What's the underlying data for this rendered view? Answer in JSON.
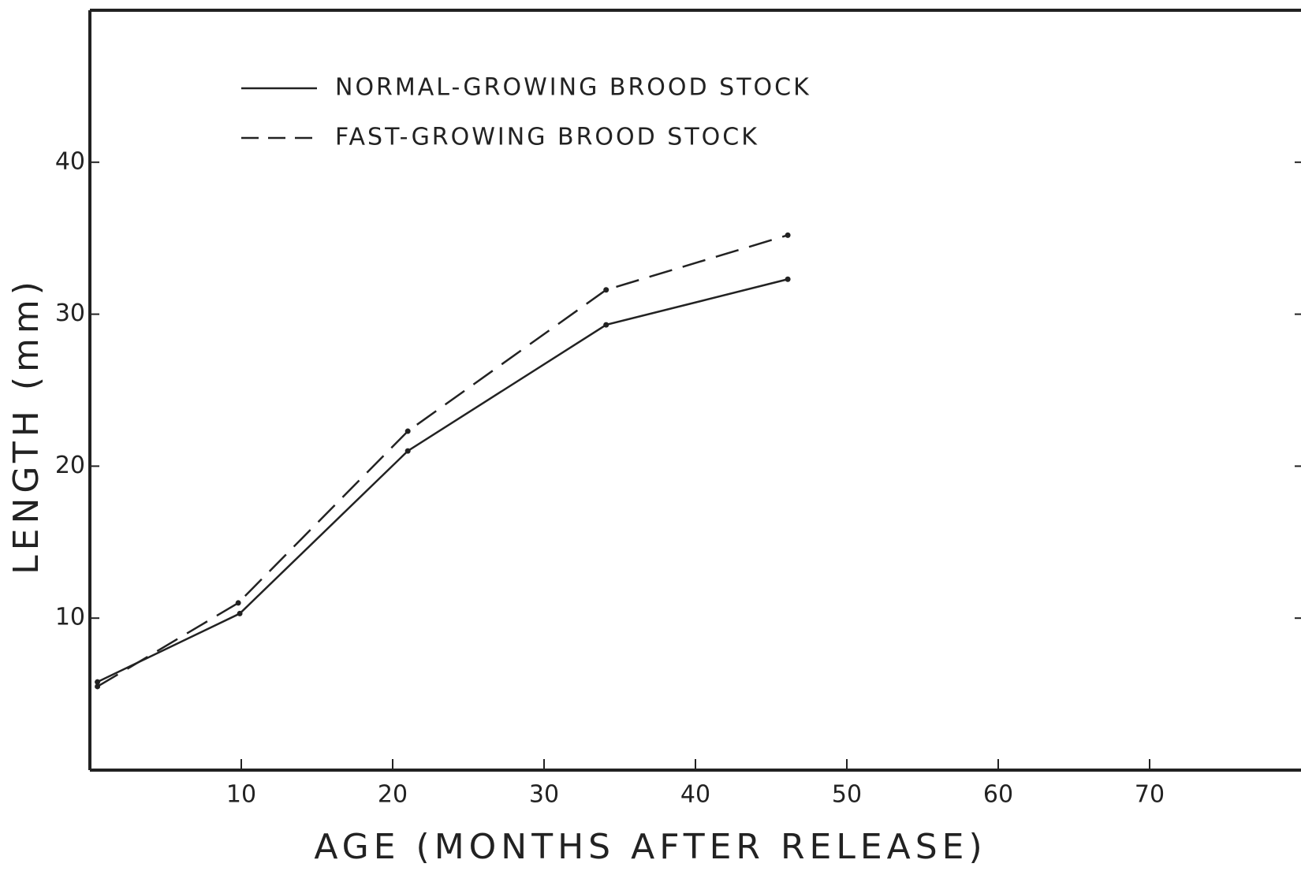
{
  "chart_data": {
    "type": "line",
    "x_label": "AGE (MONTHS AFTER RELEASE)",
    "y_label": "LENGTH (mm)",
    "xlim": [
      0,
      80
    ],
    "ylim": [
      0,
      50
    ],
    "xticks": [
      10,
      20,
      30,
      40,
      50,
      60,
      70
    ],
    "yticks": [
      10,
      20,
      30,
      40
    ],
    "legend": "top left",
    "series": [
      {
        "name": "NORMAL-GROWING BROOD STOCK",
        "color": "#222222",
        "dash": "solid",
        "x": [
          0.5,
          9.9,
          21,
          34.1,
          46.1
        ],
        "values": [
          5.8,
          10.3,
          21.0,
          29.3,
          32.3
        ]
      },
      {
        "name": "FAST-GROWING BROOD STOCK",
        "color": "#222222",
        "dash": "dashed",
        "x": [
          0.5,
          9.8,
          21,
          34.1,
          46.1
        ],
        "values": [
          5.5,
          11.0,
          22.3,
          31.6,
          35.2
        ]
      }
    ]
  }
}
